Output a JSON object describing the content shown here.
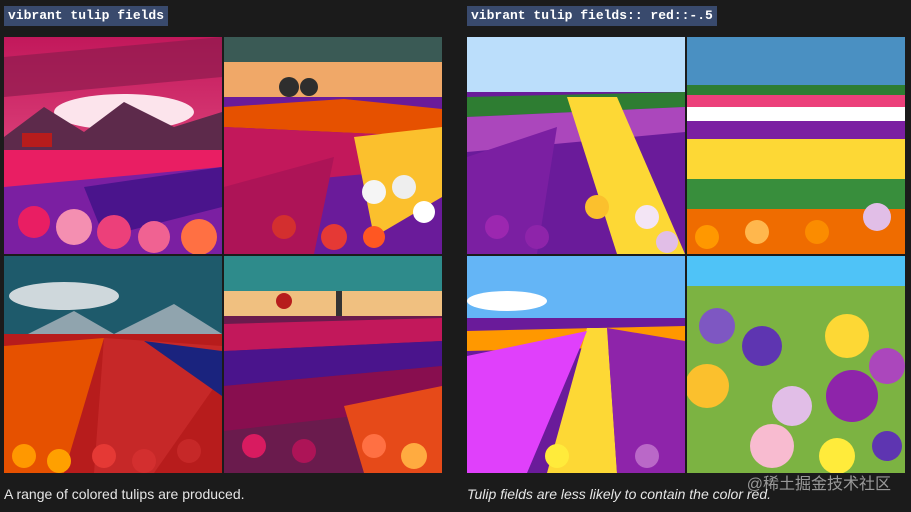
{
  "left_panel": {
    "prompt": "vibrant tulip fields",
    "caption": "A range of colored tulips are produced.",
    "images": [
      {
        "description": "stylized tulip field with red barn, mountains and pink clouds"
      },
      {
        "description": "rows of multicolored tulips with trees on horizon"
      },
      {
        "description": "red and purple tulip rows with mountains and dramatic sky"
      },
      {
        "description": "tulip rows with windmill and trees at sunset"
      }
    ]
  },
  "right_panel": {
    "prompt": "vibrant tulip fields:: red::-.5",
    "caption": "Tulip fields are less likely to contain the color red.",
    "images": [
      {
        "description": "purple, yellow and white tulip rows under blue sky"
      },
      {
        "description": "colorful stripes of tulips with orange tulips in front"
      },
      {
        "description": "purple, yellow and pink tulip rows with dirt path"
      },
      {
        "description": "close-up of purple, yellow and white tulips"
      }
    ]
  },
  "watermark": "@稀土掘金技术社区"
}
